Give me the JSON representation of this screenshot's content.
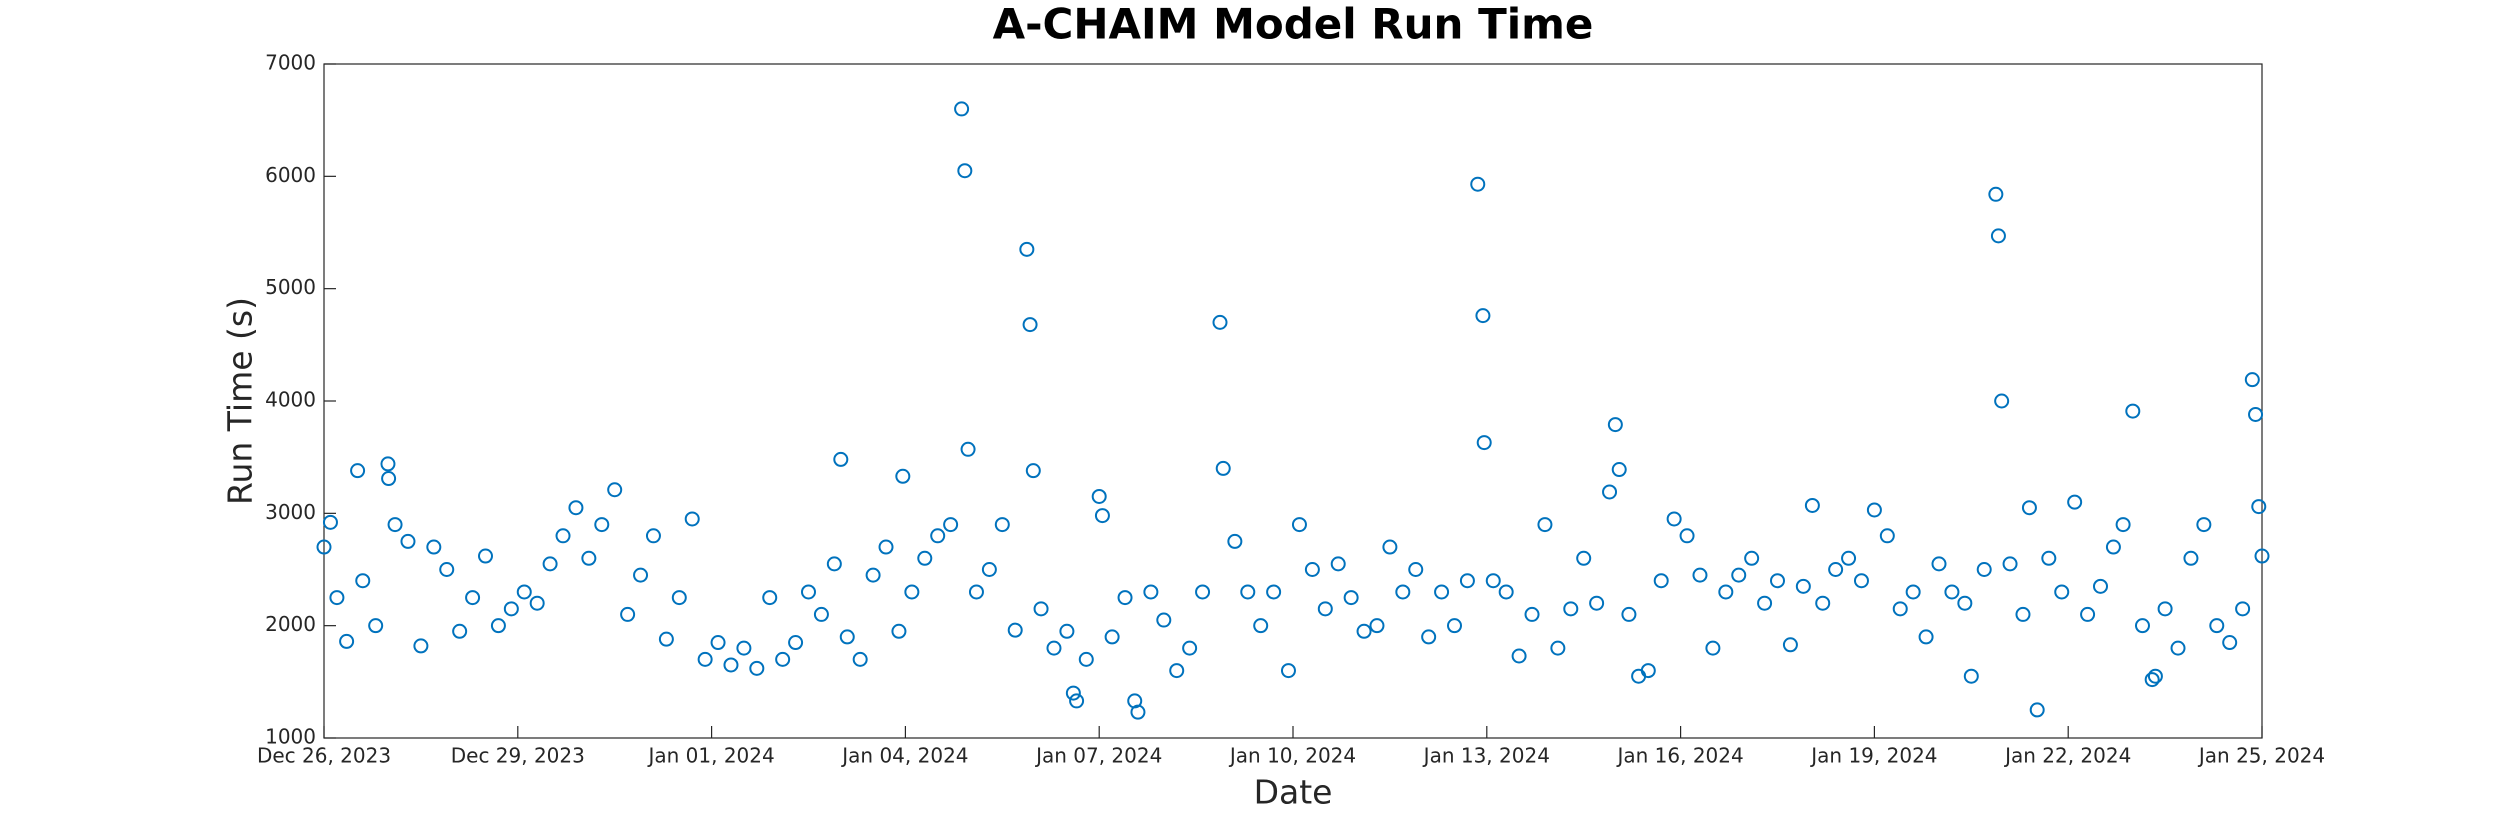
{
  "chart_data": {
    "type": "scatter",
    "title": "A-CHAIM Model Run Time",
    "x_label": "Date",
    "y_label": "Run Time (s)",
    "color": "#0072bd",
    "xlim": [
      0,
      30
    ],
    "xticks": [
      {
        "value": 0,
        "label": "Dec 26, 2023"
      },
      {
        "value": 3,
        "label": "Dec 29, 2023"
      },
      {
        "value": 6,
        "label": "Jan 01, 2024"
      },
      {
        "value": 9,
        "label": "Jan 04, 2024"
      },
      {
        "value": 12,
        "label": "Jan 07, 2024"
      },
      {
        "value": 15,
        "label": "Jan 10, 2024"
      },
      {
        "value": 18,
        "label": "Jan 13, 2024"
      },
      {
        "value": 21,
        "label": "Jan 16, 2024"
      },
      {
        "value": 24,
        "label": "Jan 19, 2024"
      },
      {
        "value": 27,
        "label": "Jan 22, 2024"
      },
      {
        "value": 30,
        "label": "Jan 25, 2024"
      }
    ],
    "ylim": [
      1000,
      7000
    ],
    "yticks": [
      1000,
      2000,
      3000,
      4000,
      5000,
      6000,
      7000
    ],
    "grid": false,
    "x": [
      0,
      0.1,
      0.2,
      0.35,
      0.52,
      0.6,
      0.8,
      0.99,
      1.0,
      1.1,
      1.3,
      1.5,
      1.7,
      1.9,
      2.1,
      2.3,
      2.5,
      2.7,
      2.9,
      3.1,
      3.3,
      3.5,
      3.7,
      3.9,
      4.1,
      4.3,
      4.5,
      4.7,
      4.9,
      5.1,
      5.3,
      5.5,
      5.7,
      5.9,
      6.1,
      6.3,
      6.5,
      6.7,
      6.9,
      7.1,
      7.3,
      7.5,
      7.7,
      7.9,
      8.0,
      8.1,
      8.3,
      8.5,
      8.7,
      8.9,
      8.96,
      9.1,
      9.3,
      9.5,
      9.7,
      9.87,
      9.92,
      9.97,
      10.1,
      10.3,
      10.5,
      10.7,
      10.88,
      10.93,
      10.98,
      11.1,
      11.3,
      11.5,
      11.6,
      11.65,
      11.8,
      12.0,
      12.05,
      12.2,
      12.4,
      12.55,
      12.6,
      12.8,
      13.0,
      13.2,
      13.4,
      13.6,
      13.87,
      13.92,
      14.1,
      14.3,
      14.5,
      14.7,
      14.93,
      15.1,
      15.3,
      15.5,
      15.7,
      15.9,
      16.1,
      16.3,
      16.5,
      16.7,
      16.9,
      17.1,
      17.3,
      17.5,
      17.7,
      17.86,
      17.94,
      17.96,
      18.1,
      18.3,
      18.5,
      18.7,
      18.9,
      19.1,
      19.3,
      19.5,
      19.7,
      19.9,
      19.99,
      20.05,
      20.2,
      20.35,
      20.5,
      20.7,
      20.9,
      21.1,
      21.3,
      21.5,
      21.7,
      21.9,
      22.1,
      22.3,
      22.5,
      22.7,
      22.9,
      23.04,
      23.2,
      23.4,
      23.6,
      23.8,
      24.0,
      24.2,
      24.4,
      24.6,
      24.8,
      25.0,
      25.2,
      25.4,
      25.5,
      25.7,
      25.88,
      25.92,
      25.97,
      26.1,
      26.3,
      26.4,
      26.52,
      26.7,
      26.9,
      27.1,
      27.3,
      27.5,
      27.7,
      27.85,
      28.0,
      28.15,
      28.3,
      28.35,
      28.5,
      28.7,
      28.9,
      29.1,
      29.3,
      29.5,
      29.7,
      29.85,
      29.9,
      29.95,
      30.0
    ],
    "values": [
      2700,
      2920,
      2250,
      1860,
      3380,
      2400,
      2000,
      3440,
      3310,
      2900,
      2750,
      1820,
      2700,
      2500,
      1950,
      2250,
      2620,
      2000,
      2150,
      2300,
      2200,
      2550,
      2800,
      3050,
      2600,
      2900,
      3210,
      2100,
      2450,
      2800,
      1880,
      2250,
      2950,
      1700,
      1850,
      1650,
      1800,
      1620,
      2250,
      1700,
      1850,
      2300,
      2100,
      2550,
      3480,
      1900,
      1700,
      2450,
      2700,
      1950,
      3330,
      2300,
      2600,
      2800,
      2900,
      6600,
      6050,
      3570,
      2300,
      2500,
      2900,
      1960,
      5350,
      4680,
      3380,
      2150,
      1800,
      1950,
      1400,
      1330,
      1700,
      3150,
      2980,
      1900,
      2250,
      1330,
      1230,
      2300,
      2050,
      1600,
      1800,
      2300,
      4700,
      3400,
      2750,
      2300,
      2000,
      2300,
      1600,
      2900,
      2500,
      2150,
      2550,
      2250,
      1950,
      2000,
      2700,
      2300,
      2500,
      1900,
      2300,
      2000,
      2400,
      5930,
      4760,
      3630,
      2400,
      2300,
      1730,
      2100,
      2900,
      1800,
      2150,
      2600,
      2200,
      3190,
      3790,
      3390,
      2100,
      1550,
      1600,
      2400,
      2950,
      2800,
      2450,
      1800,
      2300,
      2450,
      2600,
      2200,
      2400,
      1830,
      2350,
      3070,
      2200,
      2500,
      2600,
      2400,
      3030,
      2800,
      2150,
      2300,
      1900,
      2550,
      2300,
      2200,
      1550,
      2500,
      5840,
      5470,
      4000,
      2550,
      2100,
      3050,
      1250,
      2600,
      2300,
      3100,
      2100,
      2350,
      2700,
      2900,
      3910,
      2000,
      1520,
      1550,
      2150,
      1800,
      2600,
      2900,
      2000,
      1850,
      2150,
      4190,
      3880,
      3060,
      2620
    ]
  }
}
